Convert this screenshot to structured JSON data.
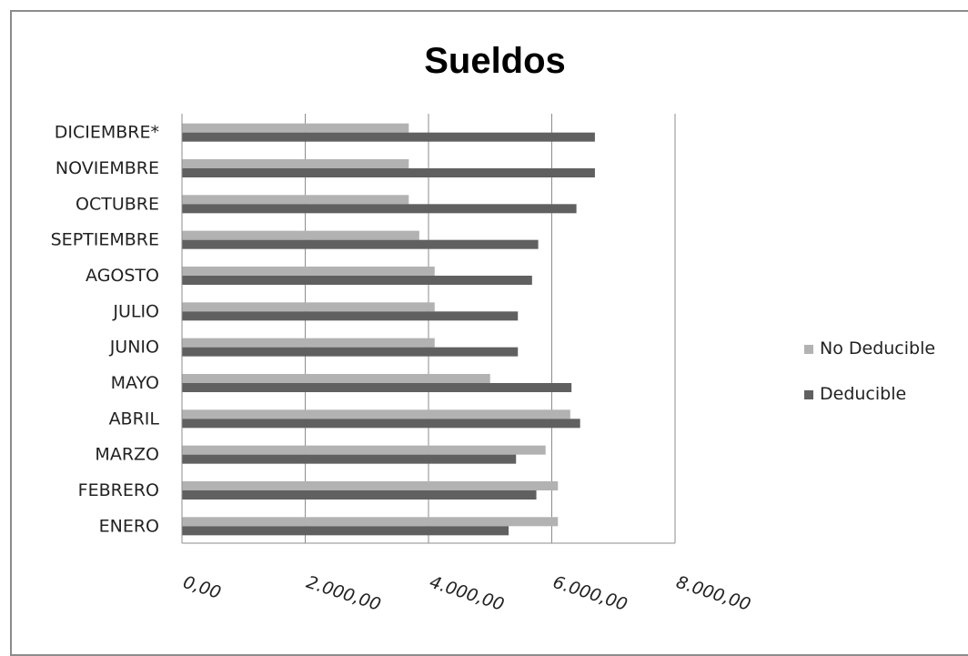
{
  "chart_data": {
    "type": "bar",
    "orientation": "horizontal",
    "title": "Sueldos",
    "categories": [
      "ENERO",
      "FEBRERO",
      "MARZO",
      "ABRIL",
      "MAYO",
      "JUNIO",
      "JULIO",
      "AGOSTO",
      "SEPTIEMBRE",
      "OCTUBRE",
      "NOVIEMBRE",
      "DICIEMBRE*"
    ],
    "series": [
      {
        "name": "No Deducible",
        "color": "#b2b2b2",
        "values": [
          6100,
          6100,
          5900,
          6300,
          5000,
          4100,
          4100,
          4100,
          3850,
          3680,
          3680,
          3680
        ]
      },
      {
        "name": "Deducible",
        "color": "#606060",
        "values": [
          5300,
          5750,
          5420,
          6460,
          6320,
          5450,
          5450,
          5680,
          5780,
          6400,
          6700,
          6700
        ]
      }
    ],
    "xlim": [
      0,
      8000
    ],
    "xticks": [
      0,
      2000,
      4000,
      6000,
      8000
    ],
    "xtick_labels": [
      "0,00",
      "2.000,00",
      "4.000,00",
      "6.000,00",
      "8.000,00"
    ],
    "grid": true,
    "legend_position": "right",
    "xlabel": "",
    "ylabel": ""
  }
}
